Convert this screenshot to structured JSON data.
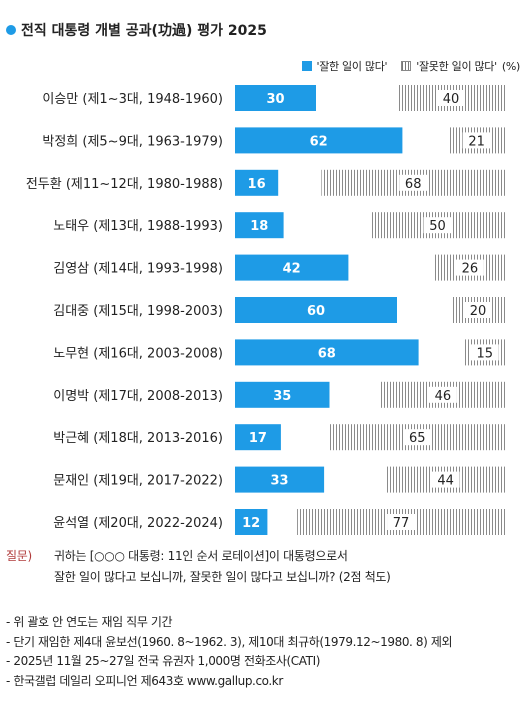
{
  "title": "전직 대통령 개별 공과(功過) 평가 2025",
  "legend": {
    "good_label": "'잘한 일이 많다'",
    "bad_label": "'잘못한 일이 많다'",
    "unit": "(%)"
  },
  "colors": {
    "good": "#1e9be6",
    "bad_hatch": "#8a8a8a"
  },
  "chart_data": {
    "type": "bar",
    "orientation": "horizontal",
    "stacked": true,
    "categories": [
      "이승만 (제1~3대, 1948-1960)",
      "박정희 (제5~9대, 1963-1979)",
      "전두환 (제11~12대, 1980-1988)",
      "노태우 (제13대, 1988-1993)",
      "김영삼 (제14대, 1993-1998)",
      "김대중 (제15대, 1998-2003)",
      "노무현 (제16대, 2003-2008)",
      "이명박 (제17대, 2008-2013)",
      "박근혜 (제18대, 2013-2016)",
      "문재인 (제19대, 2017-2022)",
      "윤석열 (제20대, 2022-2024)"
    ],
    "series": [
      {
        "name": "'잘한 일이 많다'",
        "values": [
          30,
          62,
          16,
          18,
          42,
          60,
          68,
          35,
          17,
          33,
          12
        ]
      },
      {
        "name": "'잘못한 일이 많다'",
        "values": [
          40,
          21,
          68,
          50,
          26,
          20,
          15,
          46,
          65,
          44,
          77
        ]
      }
    ],
    "xlim": [
      0,
      100
    ],
    "legend_position": "top-right"
  },
  "question": {
    "label": "질문)",
    "line1": "귀하는 [○○○ 대통령: 11인 순서 로테이션]이 대통령으로서",
    "line2": "잘한 일이 많다고 보십니까, 잘못한 일이 많다고 보십니까? (2점 척도)"
  },
  "notes": [
    "- 위 괄호 안 연도는 재임 직무 기간",
    "- 단기 재임한 제4대 윤보선(1960. 8~1962. 3), 제10대 최규하(1979.12~1980. 8) 제외",
    "- 2025년 11월 25~27일 전국 유권자 1,000명 전화조사(CATI)",
    "- 한국갤럽 데일리 오피니언 제643호 www.gallup.co.kr"
  ]
}
